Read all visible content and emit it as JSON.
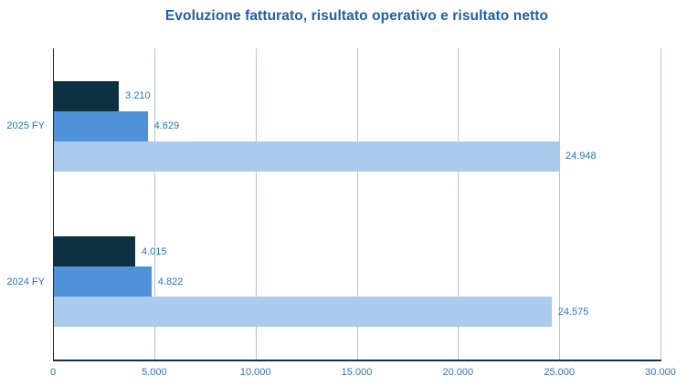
{
  "title": "Evoluzione fatturato, risultato operativo e risultato netto",
  "colors": {
    "title_text": "#1e5fa9",
    "label_text": "#2e74b8",
    "axis_line": "#12304a",
    "gridline": "#aec7dd",
    "bar_dark": "#0e3043",
    "bar_medium": "#4f92d9",
    "bar_light": "#aacbec",
    "background": "#ffffff"
  },
  "chart_data": {
    "type": "bar",
    "orientation": "horizontal",
    "title": "Evoluzione fatturato, risultato operativo e risultato netto",
    "categories": [
      "2025 FY",
      "2024 FY"
    ],
    "series": [
      {
        "color": "#0e3043",
        "values": [
          3210,
          4015
        ],
        "labels": [
          "3.210",
          "4.015"
        ]
      },
      {
        "color": "#4f92d9",
        "values": [
          4629,
          4822
        ],
        "labels": [
          "4.629",
          "4.822"
        ]
      },
      {
        "color": "#aacbec",
        "values": [
          24948,
          24575
        ],
        "labels": [
          "24.948",
          "24.575"
        ]
      }
    ],
    "xlim": [
      0,
      30000
    ],
    "xticks": {
      "values": [
        0,
        5000,
        10000,
        15000,
        20000,
        25000,
        30000
      ],
      "labels": [
        "0",
        "5.000",
        "10.000",
        "15.000",
        "20.000",
        "25.000",
        "30.000"
      ]
    },
    "grid": "vertical",
    "legend": "none",
    "value_labels": "outside-end"
  }
}
